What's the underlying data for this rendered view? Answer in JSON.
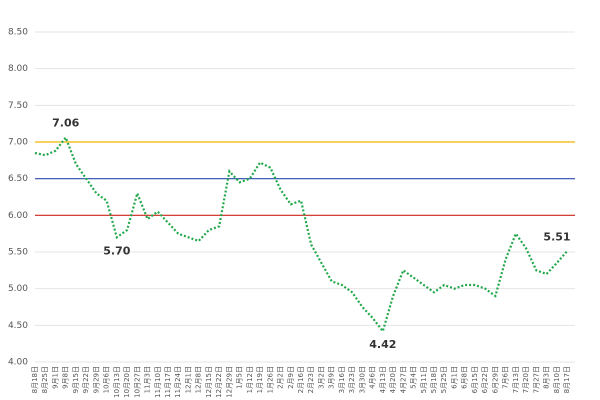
{
  "chart_data": {
    "type": "line",
    "categories": [
      "8月18日",
      "8月25日",
      "9月1日",
      "9月8日",
      "9月15日",
      "9月22日",
      "9月29日",
      "10月6日",
      "10月13日",
      "10月20日",
      "10月27日",
      "11月3日",
      "11月10日",
      "11月17日",
      "11月24日",
      "12月1日",
      "12月8日",
      "12月15日",
      "12月22日",
      "12月29日",
      "1月5日",
      "1月12日",
      "1月19日",
      "1月26日",
      "2月2日",
      "2月9日",
      "2月16日",
      "2月23日",
      "3月2日",
      "3月9日",
      "3月16日",
      "3月23日",
      "3月30日",
      "4月6日",
      "4月13日",
      "4月20日",
      "4月27日",
      "5月4日",
      "5月11日",
      "5月18日",
      "5月25日",
      "6月1日",
      "6月8日",
      "6月15日",
      "6月22日",
      "6月29日",
      "7月6日",
      "7月13日",
      "7月20日",
      "7月27日",
      "8月3日",
      "8月10日",
      "8月17日"
    ],
    "series": [
      {
        "color": "#22a84a",
        "values": [
          6.85,
          6.82,
          6.88,
          7.06,
          6.7,
          6.5,
          6.3,
          6.2,
          5.7,
          5.8,
          6.3,
          5.95,
          6.05,
          5.9,
          5.75,
          5.7,
          5.65,
          5.8,
          5.85,
          6.6,
          6.45,
          6.5,
          6.72,
          6.65,
          6.35,
          6.15,
          6.2,
          5.6,
          5.35,
          5.1,
          5.05,
          4.95,
          4.75,
          4.6,
          4.42,
          4.9,
          5.25,
          5.15,
          5.05,
          4.95,
          5.05,
          5.0,
          5.05,
          5.05,
          5.0,
          4.9,
          5.4,
          5.75,
          5.55,
          5.25,
          5.2,
          5.35,
          5.51
        ]
      }
    ],
    "ylim": [
      4.0,
      8.5
    ],
    "yticks": [
      {
        "value": 4.0,
        "label": "4.00"
      },
      {
        "value": 4.5,
        "label": "4.50"
      },
      {
        "value": 5.0,
        "label": "5.00"
      },
      {
        "value": 5.5,
        "label": "5.50"
      },
      {
        "value": 6.0,
        "label": "6.00"
      },
      {
        "value": 6.5,
        "label": "6.50"
      },
      {
        "value": 7.0,
        "label": "7.00"
      },
      {
        "value": 7.5,
        "label": "7.50"
      },
      {
        "value": 8.0,
        "label": "8.00"
      },
      {
        "value": 8.5,
        "label": "8.50"
      }
    ],
    "grid": true,
    "reference_lines": [
      {
        "value": 7.0,
        "color": "#f0b400"
      },
      {
        "value": 6.5,
        "color": "#2f4fb0"
      },
      {
        "value": 6.0,
        "color": "#d0281e"
      }
    ],
    "annotations": [
      {
        "x": "9月8日",
        "value": 7.06,
        "label": "7.06"
      },
      {
        "x": "10月13日",
        "value": 5.7,
        "label": "5.70"
      },
      {
        "x": "4月13日",
        "value": 4.42,
        "label": "4.42"
      },
      {
        "x": "8月17日",
        "value": 5.51,
        "label": "5.51"
      }
    ]
  }
}
